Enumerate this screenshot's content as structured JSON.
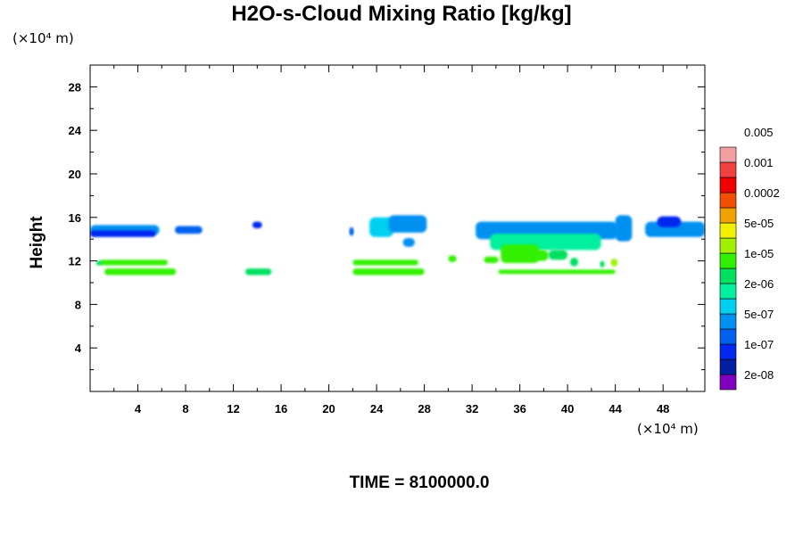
{
  "chart_data": {
    "type": "heatmap",
    "title": "H2O-s-Cloud Mixing Ratio [kg/kg]",
    "xlabel": "",
    "ylabel": "Height",
    "x_unit": "(×10⁴ m)",
    "y_unit": "(×10⁴ m)",
    "xlim": [
      0,
      51.5
    ],
    "ylim": [
      0,
      30
    ],
    "x_ticks": [
      4,
      8,
      12,
      16,
      20,
      24,
      28,
      32,
      36,
      40,
      44,
      48
    ],
    "y_ticks": [
      4,
      8,
      12,
      16,
      20,
      24,
      28
    ],
    "colorbar": {
      "colors": [
        "#8000c0",
        "#0020a0",
        "#0028f0",
        "#0060f0",
        "#0090f0",
        "#00d0f0",
        "#00f0a0",
        "#00e060",
        "#30f000",
        "#a0f000",
        "#f0f000",
        "#f0a000",
        "#f05000",
        "#f00000",
        "#f04040",
        "#f0a0a0"
      ],
      "labels": [
        "2e-08",
        "1e-07",
        "5e-07",
        "2e-06",
        "1e-05",
        "5e-05",
        "0.0002",
        "0.001",
        "0.005"
      ]
    },
    "regions": [
      {
        "x": [
          0.0,
          5.8
        ],
        "y": [
          14.4,
          15.3
        ],
        "level": 4
      },
      {
        "x": [
          0.0,
          5.5
        ],
        "y": [
          14.2,
          14.8
        ],
        "level": 2
      },
      {
        "x": [
          7.1,
          9.4
        ],
        "y": [
          14.5,
          15.2
        ],
        "level": 3
      },
      {
        "x": [
          13.6,
          14.4
        ],
        "y": [
          15.0,
          15.6
        ],
        "level": 2
      },
      {
        "x": [
          21.7,
          22.1
        ],
        "y": [
          14.3,
          15.1
        ],
        "level": 3
      },
      {
        "x": [
          23.4,
          25.4
        ],
        "y": [
          14.2,
          16.0
        ],
        "level": 5
      },
      {
        "x": [
          25.0,
          28.2
        ],
        "y": [
          14.6,
          16.2
        ],
        "level": 4
      },
      {
        "x": [
          26.2,
          27.2
        ],
        "y": [
          13.3,
          14.1
        ],
        "level": 4
      },
      {
        "x": [
          32.3,
          44.2
        ],
        "y": [
          14.0,
          15.6
        ],
        "level": 4
      },
      {
        "x": [
          33.5,
          42.8
        ],
        "y": [
          13.0,
          14.5
        ],
        "level": 6
      },
      {
        "x": [
          44.0,
          45.4
        ],
        "y": [
          13.8,
          16.2
        ],
        "level": 4
      },
      {
        "x": [
          46.5,
          51.5
        ],
        "y": [
          14.2,
          15.6
        ],
        "level": 4
      },
      {
        "x": [
          47.5,
          49.5
        ],
        "y": [
          15.1,
          16.1
        ],
        "level": 2
      },
      {
        "x": [
          34.4,
          37.6
        ],
        "y": [
          11.8,
          13.5
        ],
        "level": 8
      },
      {
        "x": [
          37.0,
          38.4
        ],
        "y": [
          12.0,
          13.0
        ],
        "level": 8
      },
      {
        "x": [
          38.4,
          40.0
        ],
        "y": [
          12.1,
          13.0
        ],
        "level": 7
      },
      {
        "x": [
          40.2,
          40.9
        ],
        "y": [
          11.5,
          12.3
        ],
        "level": 7
      },
      {
        "x": [
          33.0,
          34.2
        ],
        "y": [
          11.8,
          12.4
        ],
        "level": 8
      },
      {
        "x": [
          30.0,
          30.7
        ],
        "y": [
          11.9,
          12.5
        ],
        "level": 8
      },
      {
        "x": [
          43.6,
          44.2
        ],
        "y": [
          11.5,
          12.2
        ],
        "level": 9
      },
      {
        "x": [
          0.8,
          6.5
        ],
        "y": [
          11.6,
          12.1
        ],
        "level": 8
      },
      {
        "x": [
          0.5,
          1.0
        ],
        "y": [
          11.6,
          12.0
        ],
        "level": 7
      },
      {
        "x": [
          1.2,
          7.2
        ],
        "y": [
          10.7,
          11.3
        ],
        "level": 8
      },
      {
        "x": [
          13.0,
          15.2
        ],
        "y": [
          10.7,
          11.3
        ],
        "level": 7
      },
      {
        "x": [
          22.0,
          27.5
        ],
        "y": [
          11.6,
          12.1
        ],
        "level": 8
      },
      {
        "x": [
          22.0,
          28.0
        ],
        "y": [
          10.7,
          11.3
        ],
        "level": 8
      },
      {
        "x": [
          34.2,
          44.0
        ],
        "y": [
          10.8,
          11.2
        ],
        "level": 8
      },
      {
        "x": [
          42.7,
          43.1
        ],
        "y": [
          11.4,
          12.0
        ],
        "level": 7
      }
    ]
  },
  "footer": "TIME = 8100000.0"
}
